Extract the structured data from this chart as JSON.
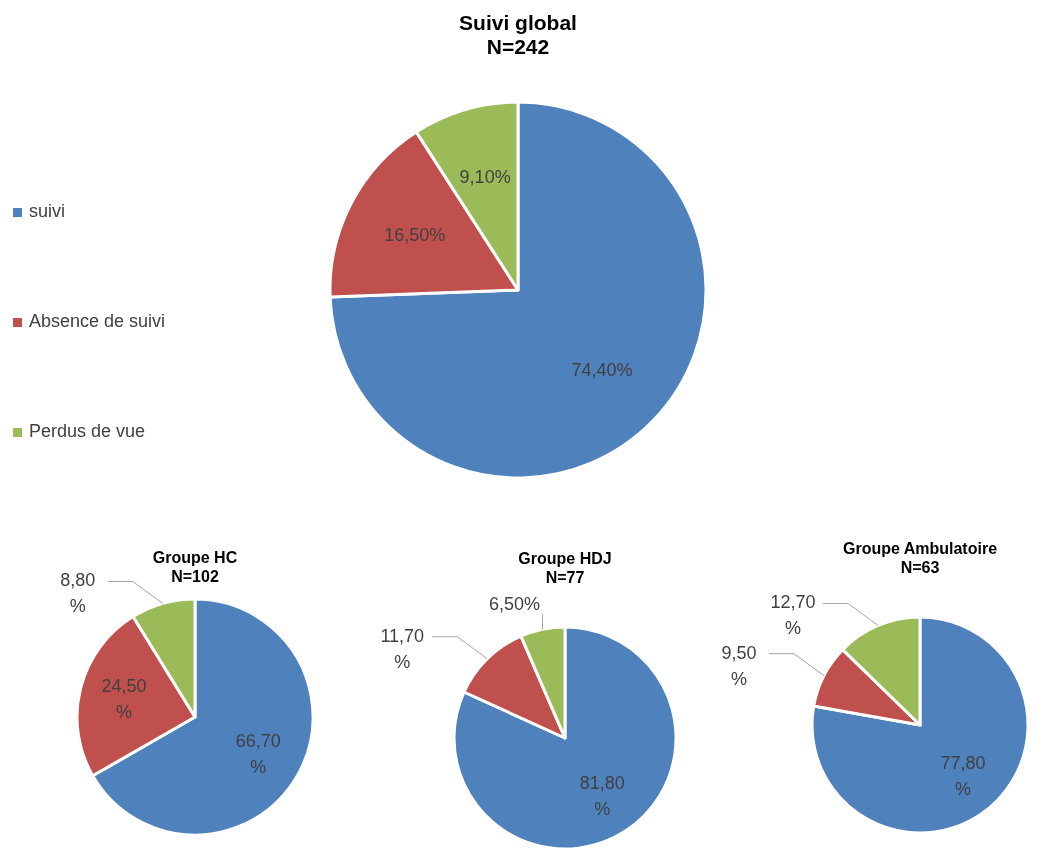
{
  "chart_data": [
    {
      "type": "pie",
      "title": "Suivi global",
      "subtitle": "N=242",
      "categories": [
        "suivi",
        "Absence de suivi",
        "Perdus de vue"
      ],
      "values": [
        74.4,
        16.5,
        9.1
      ],
      "colors": [
        "#4f81bd",
        "#c0504d",
        "#9bbb59"
      ],
      "value_labels": [
        "74,40%",
        "16,50%",
        "9,10%"
      ],
      "legend": "left"
    },
    {
      "type": "pie",
      "title": "Groupe HC",
      "subtitle": "N=102",
      "categories": [
        null,
        null,
        null
      ],
      "values": [
        66.7,
        24.5,
        8.8
      ],
      "colors": [
        "#4f81bd",
        "#c0504d",
        "#9bbb59"
      ],
      "value_labels": [
        "66,70%",
        "24,50%",
        "8,80%"
      ]
    },
    {
      "type": "pie",
      "title": "Groupe HDJ",
      "subtitle": "N=77",
      "categories": [
        null,
        null,
        null
      ],
      "values": [
        81.8,
        11.7,
        6.5
      ],
      "colors": [
        "#4f81bd",
        "#c0504d",
        "#9bbb59"
      ],
      "value_labels": [
        "81,80%",
        "11,70%",
        "6,50%"
      ]
    },
    {
      "type": "pie",
      "title": "Groupe Ambulatoire",
      "subtitle": "N=63",
      "categories": [
        null,
        null,
        null
      ],
      "values": [
        77.8,
        9.5,
        12.7
      ],
      "colors": [
        "#4f81bd",
        "#c0504d",
        "#9bbb59"
      ],
      "value_labels": [
        "77,80%",
        "9,50%",
        "12,70%"
      ]
    }
  ]
}
